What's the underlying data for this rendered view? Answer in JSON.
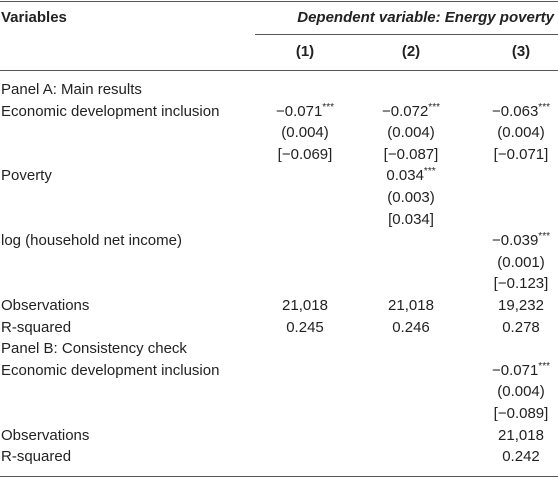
{
  "header": {
    "variables": "Variables",
    "dependent": "Dependent variable: Energy poverty",
    "columns": [
      "(1)",
      "(2)",
      "(3)"
    ]
  },
  "table": {
    "rows": [
      {
        "label": "Panel A: Main results"
      },
      {
        "label": "Economic development inclusion",
        "cells": [
          {
            "est": "−0.071",
            "stars": "***"
          },
          {
            "est": "−0.072",
            "stars": "***"
          },
          {
            "est": "−0.063",
            "stars": "***"
          }
        ]
      },
      {
        "cells": [
          "(0.004)",
          "(0.004)",
          "(0.004)"
        ]
      },
      {
        "cells": [
          "[−0.069]",
          "[−0.087]",
          "[−0.071]"
        ]
      },
      {
        "label": "Poverty",
        "cells": [
          null,
          {
            "est": "0.034",
            "stars": "***"
          },
          null
        ]
      },
      {
        "cells": [
          null,
          "(0.003)",
          null
        ]
      },
      {
        "cells": [
          null,
          "[0.034]",
          null
        ]
      },
      {
        "label": "log (household net income)",
        "cells": [
          null,
          null,
          {
            "est": "−0.039",
            "stars": "***"
          }
        ]
      },
      {
        "cells": [
          null,
          null,
          "(0.001)"
        ]
      },
      {
        "cells": [
          null,
          null,
          "[−0.123]"
        ]
      },
      {
        "label": "Observations",
        "cells": [
          "21,018",
          "21,018",
          "19,232"
        ]
      },
      {
        "label": "R-squared",
        "cells": [
          "0.245",
          "0.246",
          "0.278"
        ]
      },
      {
        "label": "Panel B: Consistency check"
      },
      {
        "label": "Economic development inclusion",
        "cells": [
          null,
          null,
          {
            "est": "−0.071",
            "stars": "***"
          }
        ]
      },
      {
        "cells": [
          null,
          null,
          "(0.004)"
        ]
      },
      {
        "cells": [
          null,
          null,
          "[−0.089]"
        ]
      },
      {
        "label": "Observations",
        "cells": [
          null,
          null,
          "21,018"
        ]
      },
      {
        "label": "R-squared",
        "cells": [
          null,
          null,
          "0.242"
        ]
      }
    ]
  }
}
